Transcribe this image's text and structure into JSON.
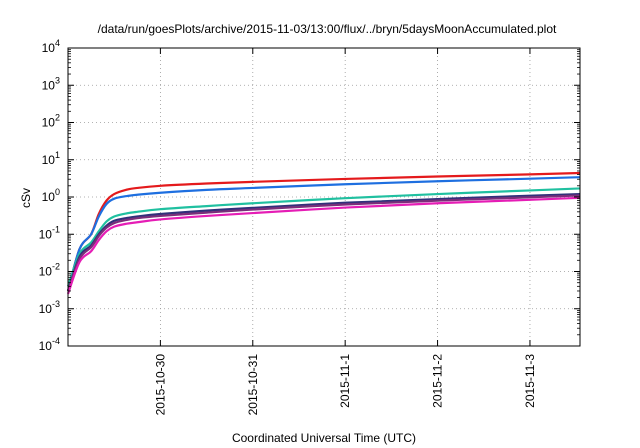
{
  "chart_data": {
    "type": "line",
    "title": "/data/run/goesPlots/archive/2015-11-03/13:00/flux/../bryn/5daysMoonAccumulated.plot",
    "xlabel": "Coordinated Universal Time (UTC)",
    "ylabel": "cSv",
    "yscale": "log",
    "ylim": [
      0.0001,
      10000
    ],
    "xlim": [
      "2015-10-29 00:00",
      "2015-11-03 13:00"
    ],
    "x_ticks": [
      "2015-10-30",
      "2015-10-31",
      "2015-11-1",
      "2015-11-2",
      "2015-11-3"
    ],
    "y_ticks": [
      {
        "value": 0.0001,
        "base": "10",
        "exp": "-4"
      },
      {
        "value": 0.001,
        "base": "10",
        "exp": "-3"
      },
      {
        "value": 0.01,
        "base": "10",
        "exp": "-2"
      },
      {
        "value": 0.1,
        "base": "10",
        "exp": "-1"
      },
      {
        "value": 1,
        "base": "10",
        "exp": "0"
      },
      {
        "value": 10,
        "base": "10",
        "exp": "1"
      },
      {
        "value": 100,
        "base": "10",
        "exp": "2"
      },
      {
        "value": 1000,
        "base": "10",
        "exp": "3"
      },
      {
        "value": 10000,
        "base": "10",
        "exp": "4"
      }
    ],
    "grid": true,
    "legend": "none",
    "x": [
      "2015-10-29 00:00",
      "2015-10-29 03:00",
      "2015-10-29 06:00",
      "2015-10-29 08:00",
      "2015-10-29 10:00",
      "2015-10-29 12:00",
      "2015-10-29 15:00",
      "2015-10-29 18:00",
      "2015-10-30 00:00",
      "2015-10-30 12:00",
      "2015-10-31 00:00",
      "2015-11-01 00:00",
      "2015-11-02 00:00",
      "2015-11-03 00:00",
      "2015-11-03 13:00"
    ],
    "series": [
      {
        "color": "#e41a1c",
        "values": [
          0.003,
          0.04,
          0.1,
          0.35,
          0.8,
          1.2,
          1.55,
          1.75,
          2.0,
          2.3,
          2.55,
          3.05,
          3.55,
          4.05,
          4.4
        ]
      },
      {
        "color": "#1e6fe0",
        "values": [
          0.003,
          0.04,
          0.1,
          0.3,
          0.65,
          0.9,
          1.05,
          1.15,
          1.3,
          1.55,
          1.75,
          2.2,
          2.65,
          3.1,
          3.4
        ]
      },
      {
        "color": "#20c0a0",
        "values": [
          0.004,
          0.03,
          0.06,
          0.12,
          0.22,
          0.3,
          0.36,
          0.4,
          0.47,
          0.57,
          0.68,
          0.93,
          1.2,
          1.5,
          1.7
        ]
      },
      {
        "color": "#30307a",
        "values": [
          0.003,
          0.025,
          0.05,
          0.1,
          0.17,
          0.23,
          0.27,
          0.3,
          0.35,
          0.43,
          0.51,
          0.7,
          0.88,
          1.08,
          1.2
        ]
      },
      {
        "color": "#7a2e7a",
        "values": [
          0.003,
          0.022,
          0.045,
          0.09,
          0.15,
          0.2,
          0.24,
          0.27,
          0.31,
          0.38,
          0.46,
          0.63,
          0.8,
          0.98,
          1.1
        ]
      },
      {
        "color": "#e51db5",
        "values": [
          0.0025,
          0.018,
          0.035,
          0.07,
          0.12,
          0.16,
          0.19,
          0.21,
          0.25,
          0.31,
          0.37,
          0.52,
          0.68,
          0.84,
          0.95
        ]
      }
    ]
  }
}
